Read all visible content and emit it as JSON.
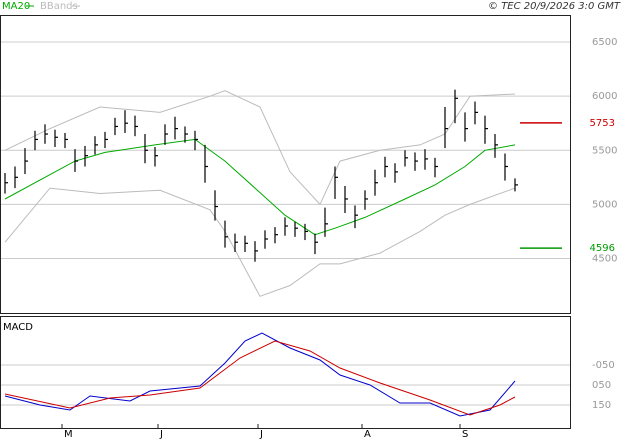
{
  "chart_data": [
    {
      "type": "hlc",
      "source": "© TEC 20/9/2026 3:0 GMT",
      "x": [
        0,
        1,
        2,
        3,
        4,
        5,
        6,
        7,
        8,
        9,
        10,
        11,
        12,
        13,
        14,
        15,
        16,
        17,
        18,
        19,
        20,
        21,
        22,
        23,
        24,
        25,
        26,
        27,
        28,
        29,
        30,
        31,
        32,
        33,
        34,
        35,
        36,
        37,
        38,
        39,
        40,
        41,
        42,
        43,
        44,
        45,
        46,
        47,
        48,
        49,
        50,
        51
      ],
      "close": [
        5200,
        5250,
        5400,
        5600,
        5650,
        5620,
        5600,
        5400,
        5450,
        5550,
        5600,
        5720,
        5750,
        5720,
        5500,
        5450,
        5650,
        5700,
        5650,
        5600,
        5350,
        4980,
        4700,
        4650,
        4640,
        4570,
        4680,
        4720,
        4800,
        4780,
        4750,
        4650,
        4820,
        5250,
        5050,
        4900,
        5050,
        5200,
        5350,
        5300,
        5430,
        5400,
        5420,
        5350,
        5700,
        5980,
        5700,
        5850,
        5700,
        5550,
        5350,
        5180
      ],
      "high": [
        5290,
        5350,
        5520,
        5680,
        5740,
        5690,
        5660,
        5510,
        5540,
        5630,
        5670,
        5800,
        5870,
        5820,
        5650,
        5530,
        5740,
        5810,
        5720,
        5680,
        5550,
        5130,
        4850,
        4730,
        4710,
        4660,
        4760,
        4790,
        4880,
        4840,
        4820,
        4730,
        4970,
        5350,
        5170,
        4990,
        5130,
        5320,
        5440,
        5380,
        5500,
        5480,
        5510,
        5430,
        5900,
        6060,
        5850,
        5950,
        5820,
        5650,
        5470,
        5240
      ],
      "low": [
        5100,
        5150,
        5280,
        5500,
        5560,
        5530,
        5520,
        5300,
        5350,
        5460,
        5520,
        5640,
        5660,
        5630,
        5380,
        5350,
        5550,
        5600,
        5570,
        5500,
        5200,
        4850,
        4600,
        4560,
        4560,
        4470,
        4590,
        4640,
        4710,
        4700,
        4670,
        4540,
        4700,
        5050,
        4920,
        4780,
        4950,
        5080,
        5250,
        5200,
        5350,
        5310,
        5320,
        5250,
        5520,
        5750,
        5580,
        5740,
        5560,
        5430,
        5220,
        5120
      ],
      "bar_color": "#000000",
      "series": [
        {
          "name": "MA20",
          "color": "#00aa00",
          "x": [
            0,
            4,
            7,
            10,
            15,
            19,
            22,
            25,
            28,
            31,
            33,
            36,
            40,
            43,
            46,
            48,
            51
          ],
          "values": [
            5050,
            5250,
            5400,
            5480,
            5550,
            5600,
            5400,
            5150,
            4900,
            4720,
            4780,
            4880,
            5050,
            5180,
            5350,
            5500,
            5550
          ]
        }
      ],
      "bands": {
        "name": "BBands",
        "color": "#bbbbbb",
        "x": [
          0,
          4.5,
          9.5,
          15.5,
          20.5,
          22,
          25.5,
          28.5,
          31.5,
          33.5,
          37.5,
          41.5,
          44,
          46.5,
          51
        ],
        "upper": [
          5500,
          5700,
          5900,
          5850,
          6000,
          6050,
          5900,
          5300,
          5000,
          5400,
          5500,
          5550,
          5650,
          6000,
          6020
        ],
        "lower": [
          4650,
          5150,
          5100,
          5130,
          4950,
          4750,
          4150,
          4250,
          4450,
          4450,
          4550,
          4750,
          4900,
          5000,
          5150
        ]
      },
      "levels": [
        {
          "value": 5753,
          "color": "#cc0000"
        },
        {
          "value": 4596,
          "color": "#009900"
        }
      ],
      "xlim": [
        -0.5,
        56.5
      ],
      "ylim": [
        4070,
        6750
      ],
      "yticks": [
        6500,
        6000,
        5500,
        5000,
        4500
      ],
      "grid": true
    },
    {
      "type": "line",
      "title": "MACD",
      "series": [
        {
          "color": "#0000cc",
          "x": [
            0,
            3.5,
            6.5,
            8.5,
            12.5,
            14.5,
            19.5,
            22,
            24,
            25.7,
            28.5,
            31.5,
            33.5,
            36.5,
            39.5,
            42.5,
            45.5,
            48.5,
            51
          ],
          "values": [
            105,
            150,
            175,
            105,
            130,
            80,
            55,
            -60,
            -170,
            -210,
            -135,
            -75,
            0,
            50,
            140,
            140,
            205,
            175,
            30
          ]
        },
        {
          "color": "#cc0000",
          "x": [
            0,
            6.5,
            10.5,
            14.5,
            19.5,
            23.5,
            27,
            30.5,
            33.5,
            37.5,
            42.5,
            46.5,
            49.5,
            51
          ],
          "values": [
            95,
            165,
            115,
            100,
            65,
            -85,
            -170,
            -120,
            -35,
            40,
            125,
            200,
            150,
            110
          ]
        }
      ],
      "xlim": [
        -0.5,
        56.5
      ],
      "xticks": [
        {
          "value": 5.7,
          "label": "M"
        },
        {
          "value": 15.3,
          "label": "J"
        },
        {
          "value": 25.3,
          "label": "J"
        },
        {
          "value": 35.7,
          "label": "A"
        },
        {
          "value": 45.5,
          "label": "S"
        }
      ],
      "ylim": [
        250,
        -285
      ],
      "yticks": [
        150,
        {
          "value": 50,
          "label": "050"
        },
        {
          "value": -50,
          "label": "-050"
        }
      ],
      "grid": true
    }
  ]
}
